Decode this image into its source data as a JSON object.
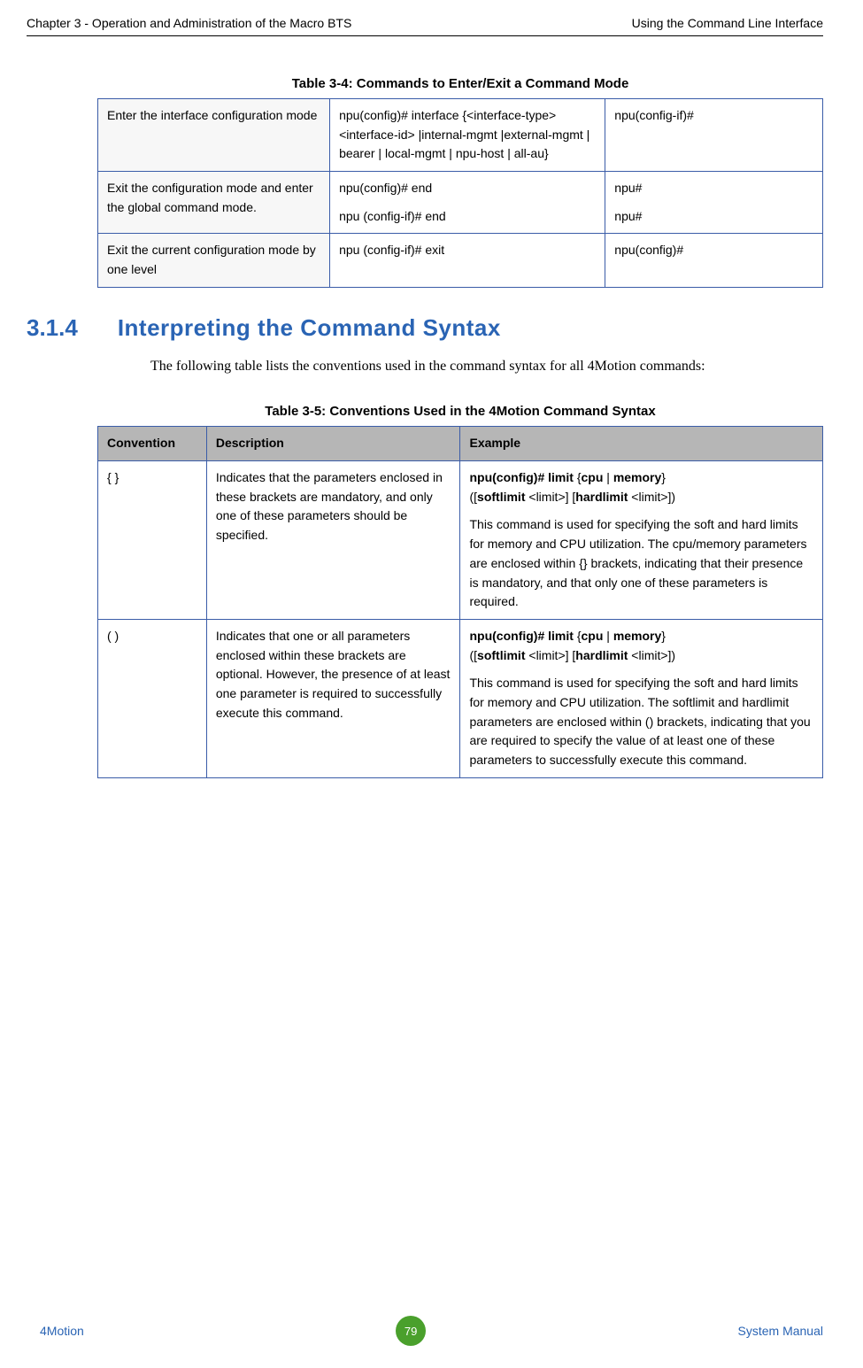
{
  "header": {
    "left": "Chapter 3 - Operation and Administration of the Macro BTS",
    "right": "Using the Command Line Interface"
  },
  "table34": {
    "caption": "Table 3-4: Commands to Enter/Exit a Command Mode",
    "rows": [
      {
        "c1": "Enter the interface configuration mode",
        "c2": "npu(config)# interface {<interface-type> <interface-id> |internal-mgmt |external-mgmt | bearer | local-mgmt | npu-host | all-au}",
        "c3": "npu(config-if)#"
      },
      {
        "c1": "Exit the configuration mode and enter the global command mode.",
        "c2a": "npu(config)# end",
        "c2b": "npu (config-if)# end",
        "c3a": "npu#",
        "c3b": "npu#"
      },
      {
        "c1": "Exit the current configuration mode by one level",
        "c2": "npu (config-if)# exit",
        "c3": "npu(config)#"
      }
    ]
  },
  "section": {
    "number": "3.1.4",
    "title": "Interpreting the Command Syntax",
    "body": "The following table lists the conventions used in the command syntax for all 4Motion commands:"
  },
  "table35": {
    "caption": "Table 3-5: Conventions Used in the 4Motion Command Syntax",
    "headers": {
      "h1": "Convention",
      "h2": "Description",
      "h3": "Example"
    },
    "rows": [
      {
        "conv": "{ }",
        "desc": "Indicates that the parameters enclosed in these brackets are mandatory, and only one of these parameters should be specified.",
        "ex_cmd_prefix": "npu(config)# limit ",
        "ex_cmd_b1": "{",
        "ex_cmd_cpu": "cpu",
        "ex_cmd_pipe": " | ",
        "ex_cmd_mem": "memory",
        "ex_cmd_b2": "} ",
        "ex_cmd_line2a": "([",
        "ex_cmd_soft": "softlimit",
        "ex_cmd_line2b": " <limit>]  [",
        "ex_cmd_hard": "hardlimit",
        "ex_cmd_line2c": " <limit>])",
        "ex_desc": "This command is used for specifying the soft and hard limits for memory and CPU utilization. The cpu/memory parameters are enclosed within {} brackets, indicating that their presence is mandatory, and that only one of these parameters is required."
      },
      {
        "conv": "( )",
        "desc": "Indicates that one or all parameters enclosed within these brackets are optional. However, the presence of at least one parameter is required to successfully execute this command.",
        "ex_cmd_prefix": "npu(config)# limit ",
        "ex_cmd_b1": "{",
        "ex_cmd_cpu": "cpu",
        "ex_cmd_pipe": " | ",
        "ex_cmd_mem": "memory",
        "ex_cmd_b2": "} ",
        "ex_cmd_line2a": "([",
        "ex_cmd_soft": "softlimit",
        "ex_cmd_line2b": " <limit>] [",
        "ex_cmd_hard": "hardlimit",
        "ex_cmd_line2c": " <limit>])",
        "ex_desc": "This command is used for specifying the soft and hard limits for memory and CPU utilization. The softlimit and hardlimit parameters are enclosed within () brackets, indicating that you are required to specify the value of at least one of these parameters to successfully execute this command."
      }
    ]
  },
  "footer": {
    "left": "4Motion",
    "page": "79",
    "right": "System Manual"
  }
}
